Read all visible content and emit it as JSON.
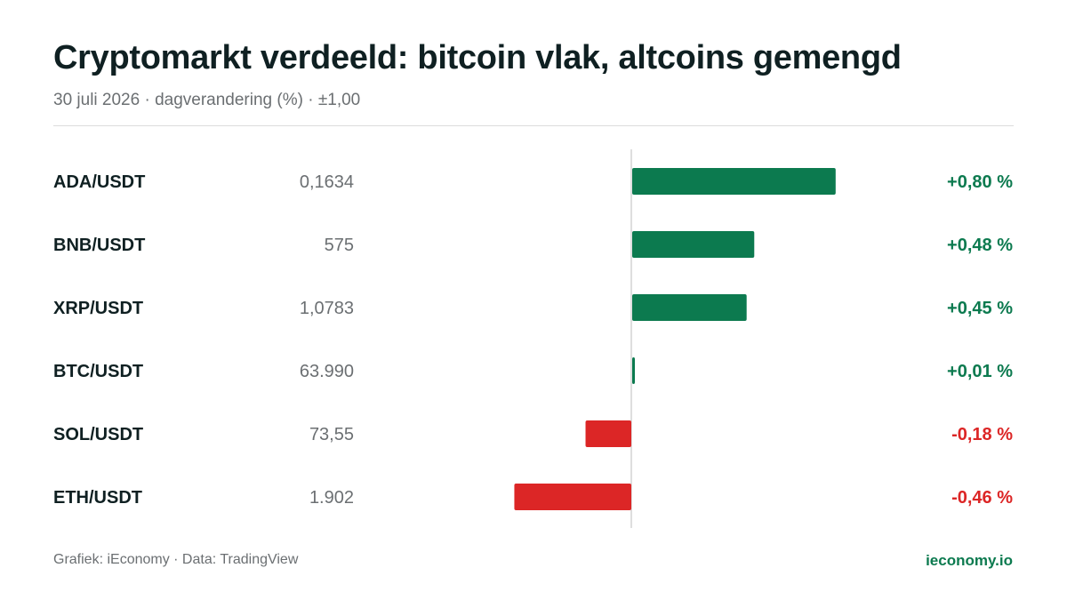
{
  "header": {
    "title": "Cryptomarkt verdeeld: bitcoin vlak, altcoins gemengd",
    "subtitle": "30 juli 2026 · dagverandering (%) · ±1,00"
  },
  "footer": {
    "source": "Grafiek: iEconomy · Data: TradingView",
    "site": "ieconomy.io"
  },
  "colors": {
    "positive": "#0c7a4f",
    "negative": "#dc2626",
    "axis": "#d4d4d4"
  },
  "chart_data": {
    "type": "bar",
    "orientation": "horizontal",
    "xlim": [
      -1.0,
      1.0
    ],
    "grid": false,
    "rows": [
      {
        "pair": "ADA/USDT",
        "price": "0,1634",
        "change": 0.8,
        "label": "+0,80 %"
      },
      {
        "pair": "BNB/USDT",
        "price": "575",
        "change": 0.48,
        "label": "+0,48 %"
      },
      {
        "pair": "XRP/USDT",
        "price": "1,0783",
        "change": 0.45,
        "label": "+0,45 %"
      },
      {
        "pair": "BTC/USDT",
        "price": "63.990",
        "change": 0.01,
        "label": "+0,01 %"
      },
      {
        "pair": "SOL/USDT",
        "price": "73,55",
        "change": -0.18,
        "label": "-0,18 %"
      },
      {
        "pair": "ETH/USDT",
        "price": "1.902",
        "change": -0.46,
        "label": "-0,46 %"
      }
    ]
  }
}
